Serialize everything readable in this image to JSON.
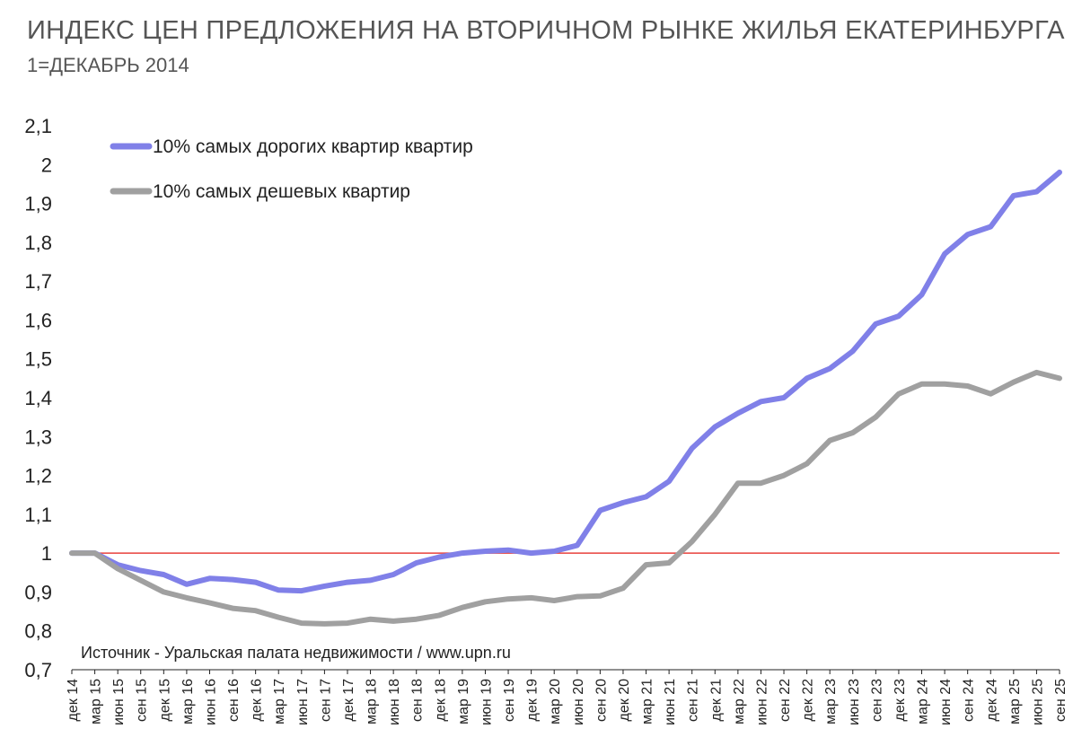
{
  "chart_data": {
    "type": "line",
    "title": "ИНДЕКС ЦЕН ПРЕДЛОЖЕНИЯ НА ВТОРИЧНОМ РЫНКЕ ЖИЛЬЯ ЕКАТЕРИНБУРГА",
    "subtitle": "1=ДЕКАБРЬ 2014",
    "xlabel": "",
    "ylabel": "",
    "ylim": [
      0.7,
      2.1
    ],
    "yticks": [
      "0,7",
      "0,8",
      "0,9",
      "1",
      "1,1",
      "1,2",
      "1,3",
      "1,4",
      "1,5",
      "1,6",
      "1,7",
      "1,8",
      "1,9",
      "2",
      "2,1"
    ],
    "categories": [
      "дек 14",
      "мар 15",
      "июн 15",
      "сен 15",
      "дек 15",
      "мар 16",
      "июн 16",
      "сен 16",
      "дек 16",
      "мар 17",
      "июн 17",
      "сен 17",
      "дек 17",
      "мар 18",
      "июн 18",
      "сен 18",
      "дек 18",
      "мар 19",
      "июн 19",
      "сен 19",
      "дек 19",
      "мар 20",
      "июн 20",
      "сен 20",
      "дек 20",
      "мар 21",
      "июн 21",
      "сен 21",
      "дек 21",
      "мар 22",
      "июн 22",
      "сен 22",
      "дек 22",
      "мар 23",
      "июн 23",
      "сен 23",
      "дек 23",
      "мар 24",
      "июн 24",
      "сен 24",
      "дек 24",
      "мар 25",
      "июн 25",
      "сен 25"
    ],
    "reference_line": {
      "value": 1,
      "color": "#e8413c"
    },
    "grid": false,
    "legend_position": "top-left",
    "series": [
      {
        "name": "10% самых дорогих квартир квартир",
        "color": "#8080e8",
        "values": [
          1.0,
          1.0,
          0.97,
          0.955,
          0.945,
          0.92,
          0.935,
          0.932,
          0.925,
          0.905,
          0.903,
          0.915,
          0.925,
          0.93,
          0.945,
          0.975,
          0.99,
          1.0,
          1.005,
          1.008,
          1.0,
          1.005,
          1.02,
          1.11,
          1.13,
          1.145,
          1.185,
          1.27,
          1.325,
          1.36,
          1.39,
          1.4,
          1.45,
          1.475,
          1.52,
          1.59,
          1.61,
          1.665,
          1.77,
          1.82,
          1.84,
          1.92,
          1.93,
          1.98
        ]
      },
      {
        "name": "10% самых дешевых квартир",
        "color": "#a0a0a0",
        "values": [
          1.0,
          1.0,
          0.96,
          0.93,
          0.9,
          0.885,
          0.872,
          0.858,
          0.852,
          0.835,
          0.82,
          0.818,
          0.82,
          0.83,
          0.825,
          0.83,
          0.84,
          0.86,
          0.875,
          0.882,
          0.885,
          0.878,
          0.888,
          0.89,
          0.91,
          0.97,
          0.975,
          1.03,
          1.1,
          1.18,
          1.18,
          1.2,
          1.23,
          1.29,
          1.31,
          1.35,
          1.41,
          1.435,
          1.435,
          1.43,
          1.41,
          1.44,
          1.465,
          1.45
        ]
      }
    ],
    "annotation": "Источник - Уральская палата недвижимости / www.upn.ru"
  }
}
